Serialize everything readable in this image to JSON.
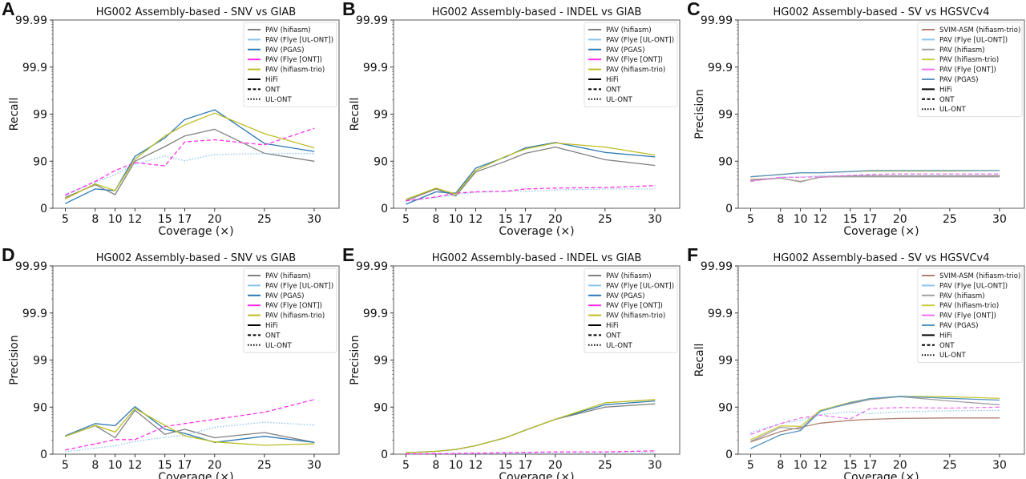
{
  "chart_data": [
    {
      "type": "line",
      "panel_label": "A",
      "title": "HG002 Assembly-based - SNV vs GIAB",
      "xlabel": "Coverage (×)",
      "ylabel": "Recall",
      "y_scale": "phred (-log10(1 - y/100))",
      "yticks": [
        "0",
        "90",
        "99",
        "99.9",
        "99.99"
      ],
      "ylim": [
        0,
        99.99
      ],
      "xlim": [
        3.75,
        32.5
      ],
      "x": [
        5,
        8,
        10,
        12,
        15,
        17,
        20,
        25,
        30
      ],
      "grid": false,
      "legend_placement": "top-right",
      "series": [
        {
          "name": "PAV (hifiasm)",
          "color": "#808080",
          "style": "solid",
          "values": [
            41.1,
            68.4,
            48.7,
            90.0,
            95.1,
            97.1,
            97.9,
            93.2,
            90.0
          ]
        },
        {
          "name": "PAV (Flye [UL-ONT])",
          "color": "#8cc4ec",
          "style": "dotted",
          "values": [
            49.9,
            71.8,
            80.9,
            88.5,
            92.2,
            90.2,
            92.8,
            93.1,
            93.1
          ]
        },
        {
          "name": "PAV (PGAS)",
          "color": "#2c78b4",
          "style": "solid",
          "values": [
            20.6,
            61.1,
            57.8,
            92.1,
            96.8,
            98.7,
            99.19,
            95.8,
            93.8
          ]
        },
        {
          "name": "PAV (Flye [ONT])",
          "color": "#ff2ee8",
          "style": "dashed",
          "values": [
            47.5,
            73.1,
            84.2,
            89.3,
            87.4,
            96.1,
            96.5,
            95.5,
            98.0
          ]
        },
        {
          "name": "PAV (hifiasm-trio)",
          "color": "#bcbd22",
          "style": "solid",
          "values": [
            36.9,
            69.8,
            57.8,
            90.9,
            97.1,
            98.3,
            99.05,
            97.4,
            94.8
          ]
        }
      ],
      "legend_styles": [
        {
          "name": "HiFi",
          "style": "solid"
        },
        {
          "name": "ONT",
          "style": "dashed"
        },
        {
          "name": "UL-ONT",
          "style": "dotted"
        }
      ]
    },
    {
      "type": "line",
      "panel_label": "B",
      "title": "HG002 Assembly-based - INDEL vs GIAB",
      "xlabel": "Coverage (×)",
      "ylabel": "Recall",
      "y_scale": "phred (-log10(1 - y/100))",
      "yticks": [
        "0",
        "90",
        "99",
        "99.9",
        "99.99"
      ],
      "ylim": [
        0,
        99.99
      ],
      "xlim": [
        3.75,
        32.5
      ],
      "x": [
        5,
        8,
        10,
        12,
        15,
        17,
        20,
        25,
        30
      ],
      "grid": false,
      "legend_placement": "top-right",
      "series": [
        {
          "name": "PAV (hifiasm)",
          "color": "#808080",
          "style": "solid",
          "values": [
            30.8,
            61.1,
            45.0,
            83.0,
            90.0,
            93.2,
            95.0,
            90.7,
            87.7
          ]
        },
        {
          "name": "PAV (Flye [UL-ONT])",
          "color": "#8cc4ec",
          "style": "dotted",
          "values": [
            29.2,
            41.1,
            48.7,
            54.3,
            56.3,
            56.3,
            59.3,
            61.1,
            61.1
          ]
        },
        {
          "name": "PAV (PGAS)",
          "color": "#2c78b4",
          "style": "solid",
          "values": [
            17.8,
            55.3,
            52.1,
            85.9,
            91.9,
            94.8,
            96.0,
            93.5,
            91.9
          ]
        },
        {
          "name": "PAV (Flye [ONT])",
          "color": "#ff2ee8",
          "style": "dashed",
          "values": [
            30.8,
            42.5,
            52.1,
            55.3,
            56.3,
            61.1,
            62.8,
            63.7,
            66.9
          ]
        },
        {
          "name": "PAV (hifiasm-trio)",
          "color": "#bcbd22",
          "style": "solid",
          "values": [
            35.4,
            62.8,
            49.9,
            84.2,
            92.1,
            94.5,
            95.9,
            95.0,
            92.6
          ]
        }
      ],
      "legend_styles": [
        {
          "name": "HiFi",
          "style": "solid"
        },
        {
          "name": "ONT",
          "style": "dashed"
        },
        {
          "name": "UL-ONT",
          "style": "dotted"
        }
      ]
    },
    {
      "type": "line",
      "panel_label": "C",
      "title": "HG002 Assembly-based - SV vs HGSVCv4",
      "xlabel": "Coverage (×)",
      "ylabel": "Precision",
      "y_scale": "phred (-log10(1 - y/100))",
      "yticks": [
        "0",
        "90",
        "99",
        "99.9",
        "99.99"
      ],
      "ylim": [
        0,
        99.99
      ],
      "xlim": [
        3.75,
        32.5
      ],
      "x": [
        5,
        8,
        10,
        12,
        15,
        17,
        20,
        25,
        30
      ],
      "grid": false,
      "legend_placement": "top-right",
      "series": [
        {
          "name": "SVIM-ASM (hifiasm-trio)",
          "color": "#b08070",
          "style": "solid",
          "values": [
            75.5,
            77.1,
            73.1,
            78.1,
            79.6,
            79.6,
            79.6,
            79.6,
            79.6
          ]
        },
        {
          "name": "PAV (Flye [UL-ONT])",
          "color": "#8cc4ec",
          "style": "dotted",
          "values": [
            74.0,
            78.1,
            78.1,
            79.6,
            79.6,
            79.8,
            79.8,
            79.8,
            80.0
          ]
        },
        {
          "name": "PAV (hifiasm)",
          "color": "#a0a0a0",
          "style": "solid",
          "values": [
            74.0,
            77.1,
            72.5,
            78.6,
            78.6,
            78.6,
            78.6,
            78.6,
            78.6
          ]
        },
        {
          "name": "PAV (hifiasm-trio)",
          "color": "#c8cc40",
          "style": "solid",
          "values": [
            78.6,
            80.9,
            82.4,
            82.4,
            83.4,
            83.8,
            83.8,
            83.8,
            84.2
          ]
        },
        {
          "name": "PAV (Flye [ONT])",
          "color": "#f070f0",
          "style": "dashed",
          "values": [
            73.1,
            78.1,
            78.1,
            78.6,
            80.0,
            80.9,
            81.4,
            81.4,
            81.4
          ]
        },
        {
          "name": "PAV (PGAS)",
          "color": "#5a94c0",
          "style": "solid",
          "values": [
            78.6,
            80.9,
            82.4,
            82.4,
            83.4,
            84.2,
            84.2,
            84.2,
            84.2
          ]
        }
      ],
      "legend_styles": [
        {
          "name": "HiFi",
          "style": "solid"
        },
        {
          "name": "ONT",
          "style": "dashed"
        },
        {
          "name": "UL-ONT",
          "style": "dotted"
        }
      ]
    },
    {
      "type": "line",
      "panel_label": "D",
      "title": "HG002 Assembly-based - SNV vs GIAB",
      "xlabel": "Coverage (×)",
      "ylabel": "Precision",
      "y_scale": "phred (-log10(1 - y/100))",
      "yticks": [
        "0",
        "90",
        "99",
        "99.9",
        "99.99"
      ],
      "ylim": [
        0,
        99.99
      ],
      "xlim": [
        3.75,
        32.5
      ],
      "x": [
        5,
        8,
        10,
        12,
        15,
        17,
        20,
        25,
        30
      ],
      "grid": false,
      "legend_placement": "top-right",
      "series": [
        {
          "name": "PAV (hifiasm)",
          "color": "#808080",
          "style": "solid",
          "values": [
            58.3,
            75.2,
            55.3,
            88.3,
            62.0,
            70.5,
            55.3,
            65.3,
            43.8
          ]
        },
        {
          "name": "PAV (Flye [UL-ONT])",
          "color": "#8cc4ec",
          "style": "dotted",
          "values": [
            10.9,
            25.9,
            33.9,
            46.3,
            56.3,
            60.2,
            73.1,
            79.1,
            76.0
          ]
        },
        {
          "name": "PAV (PGAS)",
          "color": "#2c78b4",
          "style": "solid",
          "values": [
            59.3,
            77.6,
            75.2,
            90.2,
            70.5,
            63.7,
            43.8,
            58.3,
            43.8
          ]
        },
        {
          "name": "PAV (Flye [ONT])",
          "color": "#ff2ee8",
          "style": "dashed",
          "values": [
            18.7,
            39.7,
            51.0,
            51.0,
            74.0,
            77.6,
            81.8,
            87.1,
            93.1
          ]
        },
        {
          "name": "PAV (hifiasm-trio)",
          "color": "#bcbd22",
          "style": "solid",
          "values": [
            58.3,
            75.5,
            66.1,
            89.3,
            75.5,
            59.3,
            45.0,
            35.4,
            39.7
          ]
        }
      ],
      "legend_styles": [
        {
          "name": "HiFi",
          "style": "solid"
        },
        {
          "name": "ONT",
          "style": "dashed"
        },
        {
          "name": "UL-ONT",
          "style": "dotted"
        }
      ]
    },
    {
      "type": "line",
      "panel_label": "E",
      "title": "HG002 Assembly-based - INDEL vs GIAB",
      "xlabel": "Coverage (×)",
      "ylabel": "Precision",
      "y_scale": "phred (-log10(1 - y/100))",
      "yticks": [
        "0",
        "90",
        "99",
        "99.9",
        "99.99"
      ],
      "ylim": [
        0,
        99.99
      ],
      "xlim": [
        3.75,
        32.5
      ],
      "x": [
        5,
        8,
        10,
        12,
        15,
        17,
        20,
        25,
        30
      ],
      "grid": false,
      "legend_placement": "top-right",
      "series": [
        {
          "name": "PAV (hifiasm)",
          "color": "#808080",
          "style": "solid",
          "values": [
            6.7,
            12.9,
            20.6,
            33.9,
            55.3,
            69.1,
            81.8,
            90.0,
            91.5
          ]
        },
        {
          "name": "PAV (Flye [UL-ONT])",
          "color": "#8cc4ec",
          "style": "dotted",
          "values": [
            1.1,
            2.3,
            2.3,
            2.3,
            4.0,
            4.0,
            4.5,
            5.0,
            6.7
          ]
        },
        {
          "name": "PAV (PGAS)",
          "color": "#2c78b4",
          "style": "solid",
          "values": [
            6.7,
            12.9,
            20.6,
            33.9,
            55.3,
            69.1,
            81.8,
            91.1,
            92.6
          ]
        },
        {
          "name": "PAV (Flye [ONT])",
          "color": "#ff2ee8",
          "style": "dashed",
          "values": [
            1.1,
            2.3,
            3.0,
            4.5,
            6.7,
            8.0,
            10.9,
            10.9,
            14.9
          ]
        },
        {
          "name": "PAV (hifiasm-trio)",
          "color": "#bcbd22",
          "style": "solid",
          "values": [
            6.7,
            12.9,
            20.6,
            33.9,
            55.3,
            69.1,
            81.8,
            91.9,
            93.1
          ]
        }
      ],
      "legend_styles": [
        {
          "name": "HiFi",
          "style": "solid"
        },
        {
          "name": "ONT",
          "style": "dashed"
        },
        {
          "name": "UL-ONT",
          "style": "dotted"
        }
      ]
    },
    {
      "type": "line",
      "panel_label": "F",
      "title": "HG002 Assembly-based - SV vs HGSVCv4",
      "xlabel": "Coverage (×)",
      "ylabel": "Recall",
      "y_scale": "phred (-log10(1 - y/100))",
      "yticks": [
        "0",
        "90",
        "99",
        "99.9",
        "99.99"
      ],
      "ylim": [
        0,
        99.99
      ],
      "xlim": [
        3.75,
        32.5
      ],
      "x": [
        5,
        8,
        10,
        12,
        15,
        17,
        20,
        25,
        30
      ],
      "grid": false,
      "legend_placement": "top-right",
      "series": [
        {
          "name": "SVIM-ASM (hifiasm-trio)",
          "color": "#b08070",
          "style": "solid",
          "values": [
            45.0,
            66.9,
            73.1,
            78.1,
            80.9,
            81.8,
            82.6,
            83.0,
            83.0
          ]
        },
        {
          "name": "PAV (Flye [UL-ONT])",
          "color": "#8cc4ec",
          "style": "dotted",
          "values": [
            65.3,
            77.6,
            80.9,
            85.5,
            87.4,
            86.2,
            87.4,
            88.0,
            88.3
          ]
        },
        {
          "name": "PAV (hifiasm)",
          "color": "#a0a0a0",
          "style": "solid",
          "values": [
            46.3,
            73.1,
            70.5,
            88.3,
            91.5,
            93.1,
            94.0,
            92.6,
            91.1
          ]
        },
        {
          "name": "PAV (hifiasm-trio)",
          "color": "#c8cc40",
          "style": "solid",
          "values": [
            51.0,
            74.9,
            74.3,
            88.3,
            92.1,
            93.4,
            94.1,
            94.0,
            93.5
          ]
        },
        {
          "name": "PAV (Flye [ONT])",
          "color": "#f070f0",
          "style": "dashed",
          "values": [
            62.0,
            77.6,
            83.0,
            85.2,
            82.2,
            89.3,
            89.8,
            89.5,
            90.0
          ]
        },
        {
          "name": "PAV (PGAS)",
          "color": "#5a94c0",
          "style": "solid",
          "values": [
            24.1,
            61.1,
            68.4,
            87.7,
            91.9,
            93.4,
            94.1,
            93.5,
            92.9
          ]
        }
      ],
      "legend_styles": [
        {
          "name": "HiFi",
          "style": "solid"
        },
        {
          "name": "ONT",
          "style": "dashed"
        },
        {
          "name": "UL-ONT",
          "style": "dotted"
        }
      ]
    }
  ]
}
